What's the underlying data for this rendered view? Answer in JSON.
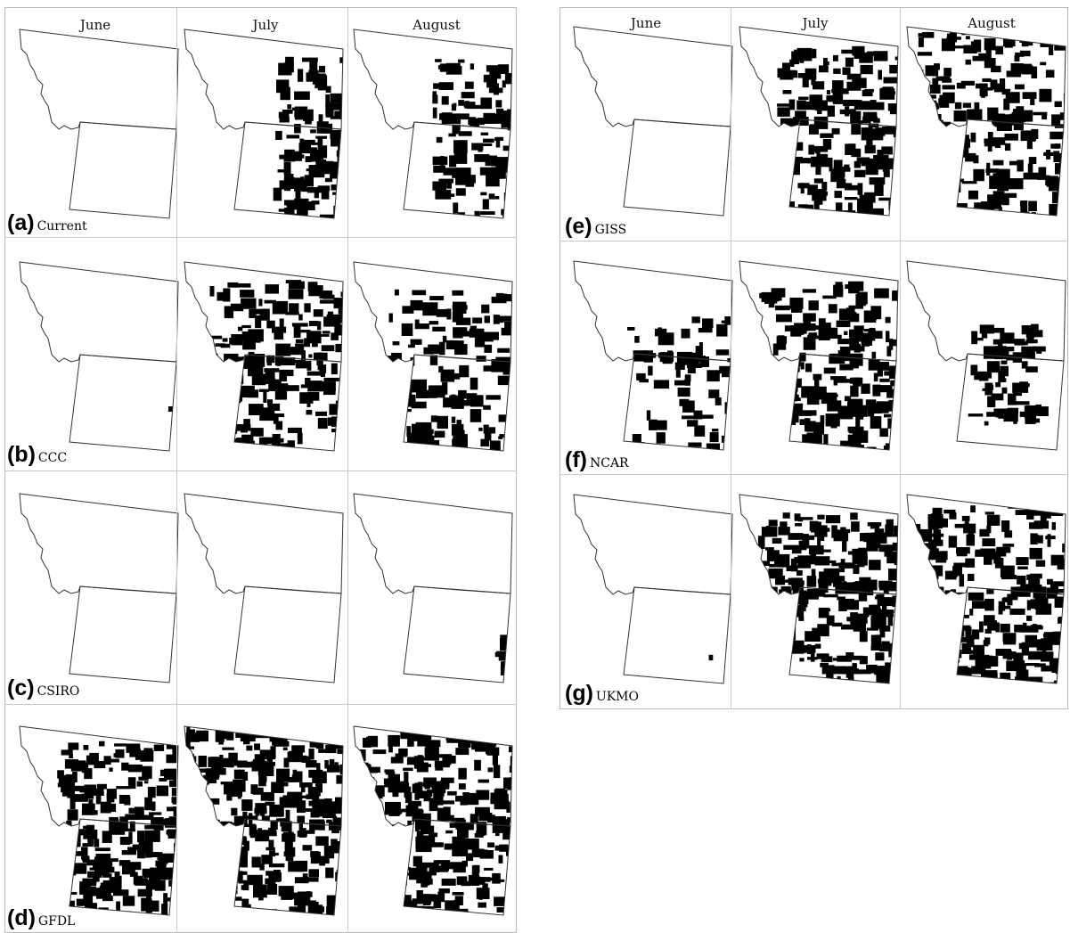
{
  "months": [
    "June",
    "July",
    "August"
  ],
  "panels": [
    {
      "letter": "(a)",
      "name": "Current"
    },
    {
      "letter": "(b)",
      "name": "CCC"
    },
    {
      "letter": "(c)",
      "name": "CSIRO"
    },
    {
      "letter": "(d)",
      "name": "GFDL"
    },
    {
      "letter": "(e)",
      "name": "GISS"
    },
    {
      "letter": "(f)",
      "name": "NCAR"
    },
    {
      "letter": "(g)",
      "name": "UKMO"
    }
  ],
  "colors": {
    "fill": "#000000",
    "outline": "#333333",
    "grid": "#c8c8c8"
  }
}
